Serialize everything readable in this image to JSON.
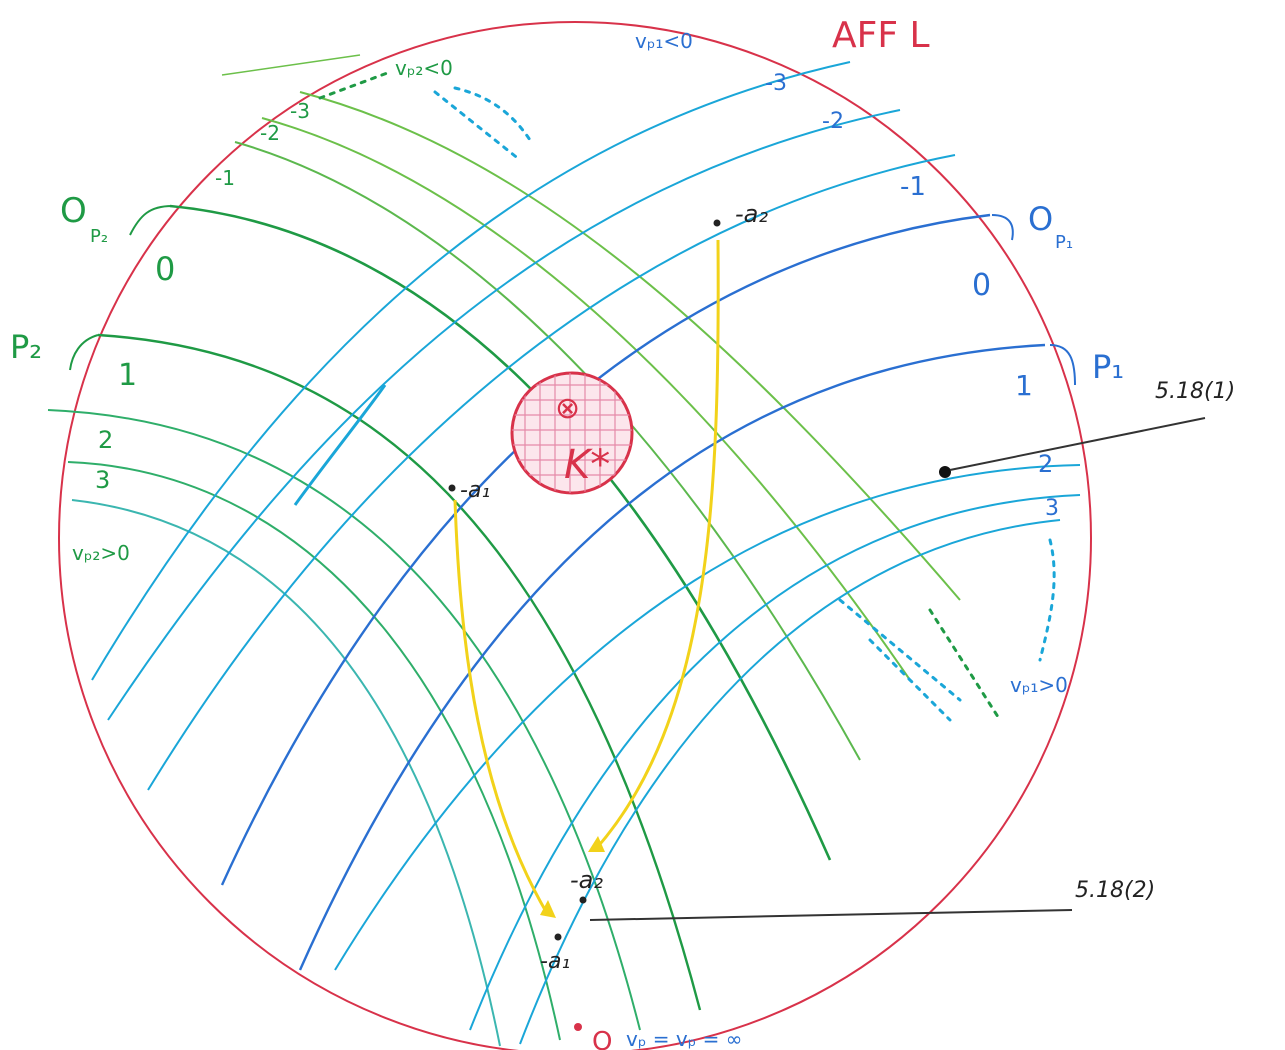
{
  "title": "AFF L",
  "center_label": "K*",
  "center_symbol": "⊗",
  "points": {
    "neg_a1": "-a₁",
    "neg_a2": "-a₂",
    "lower_a1": "-a₁",
    "lower_a2": "-a₂"
  },
  "references": {
    "ref1": "5.18(1)",
    "ref2": "5.18(2)"
  },
  "family_p2": {
    "label": "P₂",
    "origin_label": "O",
    "origin_sub": "P₂",
    "zero": "0",
    "levels": [
      "-3",
      "-2",
      "-1",
      "1",
      "2",
      "3"
    ],
    "neg_note": "vₚ₂<0",
    "pos_note": "vₚ₂>0"
  },
  "family_p1": {
    "label": "P₁",
    "origin_label": "O",
    "origin_sub": "P₁",
    "zero": "0",
    "levels": [
      "-3",
      "-2",
      "-1",
      "1",
      "2",
      "3"
    ],
    "neg_note": "vₚ₁<0",
    "pos_note": "vₚ₁>0"
  },
  "bottom": {
    "point_label": "O",
    "note": "vₚ = vₚ = ∞"
  },
  "colors": {
    "boundary": "#d8324a",
    "p2_family": "#1f9a45",
    "p1_family": "#2a6fd1",
    "light_curves": "#1aa6d8",
    "arrows": "#f2d21a",
    "hatch": "#d8324a"
  }
}
